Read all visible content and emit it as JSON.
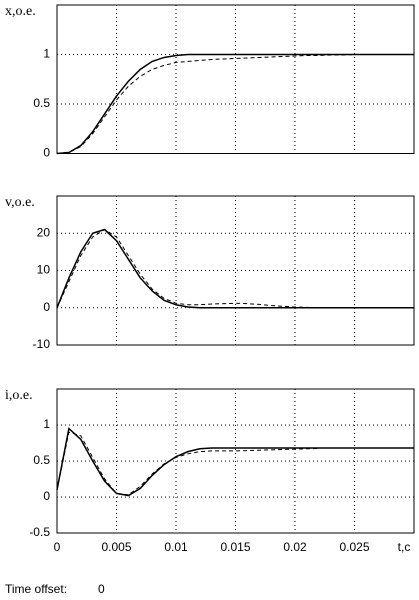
{
  "chart_data": [
    {
      "type": "line",
      "ylabel": "x,o.e.",
      "x": [
        0,
        0.001,
        0.002,
        0.003,
        0.004,
        0.005,
        0.006,
        0.007,
        0.008,
        0.009,
        0.01,
        0.011,
        0.012,
        0.013,
        0.014,
        0.015,
        0.016,
        0.017,
        0.018,
        0.019,
        0.02,
        0.021,
        0.022,
        0.023,
        0.024,
        0.025,
        0.026,
        0.027,
        0.028,
        0.029,
        0.03
      ],
      "series": [
        {
          "color": "#000000",
          "dashed": false,
          "values": [
            0,
            0.01,
            0.08,
            0.22,
            0.4,
            0.58,
            0.73,
            0.85,
            0.93,
            0.97,
            0.99,
            1,
            1,
            1,
            1,
            1,
            1,
            1,
            1,
            1,
            1,
            1,
            1,
            1,
            1,
            1,
            1,
            1,
            1,
            1,
            1
          ]
        },
        {
          "color": "#000000",
          "dashed": true,
          "values": [
            0,
            0.01,
            0.07,
            0.2,
            0.37,
            0.54,
            0.68,
            0.78,
            0.85,
            0.89,
            0.92,
            0.93,
            0.94,
            0.95,
            0.955,
            0.96,
            0.965,
            0.97,
            0.975,
            0.98,
            0.985,
            0.99,
            0.99,
            0.995,
            0.995,
            1,
            null,
            null,
            null,
            null,
            null
          ]
        }
      ],
      "xlim": [
        0,
        0.03
      ],
      "xticks": [
        0,
        0.005,
        0.01,
        0.015,
        0.02,
        0.025
      ],
      "xtick_labels": false,
      "ylim": [
        0,
        1.5
      ],
      "yticks": [
        0,
        0.5,
        1
      ],
      "grid": true
    },
    {
      "type": "line",
      "ylabel": "v,o.e.",
      "x": [
        0,
        0.001,
        0.002,
        0.003,
        0.004,
        0.005,
        0.006,
        0.007,
        0.008,
        0.009,
        0.01,
        0.011,
        0.012,
        0.013,
        0.014,
        0.015,
        0.016,
        0.017,
        0.018,
        0.019,
        0.02,
        0.021,
        0.022,
        0.023,
        0.024,
        0.025,
        0.026,
        0.027,
        0.028,
        0.029,
        0.03
      ],
      "series": [
        {
          "color": "#000000",
          "dashed": false,
          "values": [
            0,
            8,
            15,
            20,
            21,
            18,
            13,
            8,
            4.5,
            2,
            0.8,
            0.2,
            0,
            0,
            0,
            0,
            0,
            0,
            0,
            0,
            0,
            0,
            0,
            0,
            0,
            0,
            0,
            0,
            0,
            0,
            0
          ]
        },
        {
          "color": "#000000",
          "dashed": true,
          "values": [
            0,
            7,
            14,
            19,
            21,
            19,
            14,
            9,
            5,
            2.5,
            1.2,
            0.8,
            0.8,
            1,
            1.1,
            1.2,
            1.1,
            0.9,
            0.6,
            0.4,
            0.2,
            0.1,
            0,
            null,
            null,
            null,
            null,
            null,
            null,
            null,
            null
          ]
        }
      ],
      "xlim": [
        0,
        0.03
      ],
      "xticks": [
        0,
        0.005,
        0.01,
        0.015,
        0.02,
        0.025
      ],
      "xtick_labels": false,
      "ylim": [
        -10,
        30
      ],
      "yticks": [
        -10,
        0,
        10,
        20
      ],
      "grid": true
    },
    {
      "type": "line",
      "ylabel": "i,o.e.",
      "xlabel": "t,c",
      "x": [
        0,
        0.001,
        0.002,
        0.003,
        0.004,
        0.005,
        0.006,
        0.007,
        0.008,
        0.009,
        0.01,
        0.011,
        0.012,
        0.013,
        0.014,
        0.015,
        0.016,
        0.017,
        0.018,
        0.019,
        0.02,
        0.021,
        0.022,
        0.023,
        0.024,
        0.025,
        0.026,
        0.027,
        0.028,
        0.029,
        0.03
      ],
      "series": [
        {
          "color": "#000000",
          "dashed": false,
          "values": [
            0.1,
            0.95,
            0.8,
            0.5,
            0.22,
            0.05,
            0.02,
            0.12,
            0.3,
            0.45,
            0.56,
            0.63,
            0.67,
            0.68,
            0.68,
            0.68,
            0.68,
            0.68,
            0.68,
            0.68,
            0.68,
            0.68,
            0.68,
            0.68,
            0.68,
            0.68,
            0.68,
            0.68,
            0.68,
            0.68,
            0.68
          ]
        },
        {
          "color": "#000000",
          "dashed": true,
          "values": [
            0.1,
            0.9,
            0.85,
            0.55,
            0.25,
            0.05,
            0.03,
            0.15,
            0.32,
            0.46,
            0.55,
            0.6,
            0.63,
            0.64,
            0.64,
            0.64,
            0.645,
            0.65,
            0.655,
            0.66,
            0.665,
            0.67,
            0.675,
            null,
            null,
            null,
            null,
            null,
            null,
            null,
            null
          ]
        }
      ],
      "xlim": [
        0,
        0.03
      ],
      "xticks": [
        0,
        0.005,
        0.01,
        0.015,
        0.02,
        0.025
      ],
      "xtick_labels": true,
      "ylim": [
        -0.5,
        1.5
      ],
      "yticks": [
        -0.5,
        0,
        0.5,
        1
      ],
      "grid": true
    }
  ],
  "time_offset": {
    "label": "Time offset:",
    "value": 0
  }
}
